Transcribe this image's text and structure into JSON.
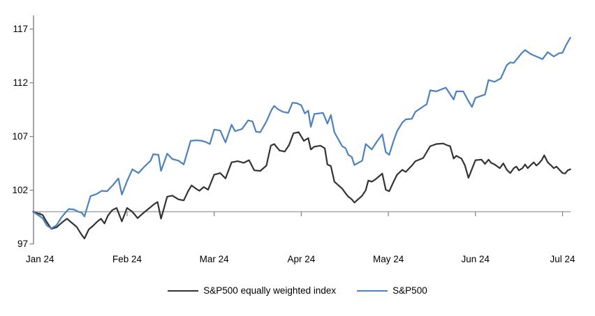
{
  "chart_data": {
    "type": "line",
    "title": "",
    "xlabel": "",
    "ylabel": "",
    "x_unit": "months_since_2024-01-01",
    "x_tick_labels": [
      "Jan 24",
      "Feb 24",
      "Mar 24",
      "Apr 24",
      "May 24",
      "Jun 24",
      "Jul 24"
    ],
    "y_ticks": [
      97,
      102,
      107,
      112,
      117
    ],
    "ylim": [
      97,
      117
    ],
    "baseline_value": 100,
    "grid": "off",
    "legend_position": "bottom",
    "colors": {
      "axis": "#7f7f7f",
      "baseline": "#a6a6a6",
      "text": "#000000",
      "background": "#ffffff"
    },
    "series": [
      {
        "name": "S&P500 equally weighted index",
        "color": "#333333",
        "points": [
          [
            -0.08,
            100.0
          ],
          [
            0.03,
            99.7
          ],
          [
            0.08,
            99.0
          ],
          [
            0.13,
            98.4
          ],
          [
            0.19,
            98.55
          ],
          [
            0.26,
            99.05
          ],
          [
            0.31,
            99.35
          ],
          [
            0.36,
            99.0
          ],
          [
            0.42,
            98.6
          ],
          [
            0.47,
            97.95
          ],
          [
            0.51,
            97.5
          ],
          [
            0.56,
            98.35
          ],
          [
            0.61,
            98.7
          ],
          [
            0.66,
            99.1
          ],
          [
            0.7,
            99.35
          ],
          [
            0.74,
            98.9
          ],
          [
            0.78,
            99.65
          ],
          [
            0.83,
            100.15
          ],
          [
            0.88,
            100.35
          ],
          [
            0.94,
            99.1
          ],
          [
            1.0,
            100.35
          ],
          [
            1.06,
            100.0
          ],
          [
            1.12,
            99.4
          ],
          [
            1.19,
            99.9
          ],
          [
            1.25,
            100.3
          ],
          [
            1.31,
            100.7
          ],
          [
            1.35,
            100.9
          ],
          [
            1.39,
            99.35
          ],
          [
            1.46,
            101.4
          ],
          [
            1.52,
            101.5
          ],
          [
            1.59,
            101.15
          ],
          [
            1.65,
            101.05
          ],
          [
            1.7,
            101.9
          ],
          [
            1.74,
            102.45
          ],
          [
            1.79,
            102.15
          ],
          [
            1.83,
            101.95
          ],
          [
            1.88,
            102.3
          ],
          [
            1.93,
            102.05
          ],
          [
            2.0,
            103.45
          ],
          [
            2.07,
            103.6
          ],
          [
            2.13,
            103.1
          ],
          [
            2.2,
            104.6
          ],
          [
            2.27,
            104.7
          ],
          [
            2.34,
            104.55
          ],
          [
            2.4,
            104.8
          ],
          [
            2.46,
            103.85
          ],
          [
            2.53,
            103.8
          ],
          [
            2.6,
            104.3
          ],
          [
            2.65,
            106.15
          ],
          [
            2.69,
            106.3
          ],
          [
            2.75,
            105.7
          ],
          [
            2.81,
            105.6
          ],
          [
            2.86,
            106.2
          ],
          [
            2.91,
            107.3
          ],
          [
            2.97,
            107.4
          ],
          [
            3.03,
            106.6
          ],
          [
            3.08,
            106.85
          ],
          [
            3.11,
            105.8
          ],
          [
            3.15,
            106.05
          ],
          [
            3.22,
            106.15
          ],
          [
            3.27,
            105.9
          ],
          [
            3.3,
            104.4
          ],
          [
            3.34,
            104.25
          ],
          [
            3.38,
            102.8
          ],
          [
            3.47,
            102.15
          ],
          [
            3.51,
            101.7
          ],
          [
            3.54,
            101.4
          ],
          [
            3.58,
            101.15
          ],
          [
            3.61,
            100.85
          ],
          [
            3.7,
            101.5
          ],
          [
            3.74,
            102.0
          ],
          [
            3.77,
            102.9
          ],
          [
            3.81,
            102.8
          ],
          [
            3.85,
            103.0
          ],
          [
            3.93,
            103.55
          ],
          [
            3.97,
            102.05
          ],
          [
            4.01,
            101.9
          ],
          [
            4.06,
            102.8
          ],
          [
            4.1,
            103.45
          ],
          [
            4.16,
            103.9
          ],
          [
            4.2,
            103.7
          ],
          [
            4.27,
            104.3
          ],
          [
            4.31,
            104.7
          ],
          [
            4.4,
            105.0
          ],
          [
            4.44,
            105.55
          ],
          [
            4.48,
            106.1
          ],
          [
            4.55,
            106.3
          ],
          [
            4.63,
            106.35
          ],
          [
            4.67,
            106.2
          ],
          [
            4.71,
            106.1
          ],
          [
            4.75,
            104.95
          ],
          [
            4.78,
            105.2
          ],
          [
            4.84,
            104.95
          ],
          [
            4.88,
            104.3
          ],
          [
            4.92,
            103.15
          ],
          [
            5.0,
            104.8
          ],
          [
            5.07,
            104.85
          ],
          [
            5.11,
            104.45
          ],
          [
            5.15,
            104.85
          ],
          [
            5.18,
            104.55
          ],
          [
            5.22,
            104.4
          ],
          [
            5.28,
            104.05
          ],
          [
            5.32,
            104.5
          ],
          [
            5.36,
            103.9
          ],
          [
            5.4,
            103.6
          ],
          [
            5.44,
            104.05
          ],
          [
            5.47,
            104.2
          ],
          [
            5.5,
            103.85
          ],
          [
            5.54,
            104.05
          ],
          [
            5.57,
            104.4
          ],
          [
            5.6,
            104.05
          ],
          [
            5.63,
            104.3
          ],
          [
            5.67,
            104.6
          ],
          [
            5.7,
            104.3
          ],
          [
            5.73,
            104.5
          ],
          [
            5.76,
            104.8
          ],
          [
            5.79,
            105.25
          ],
          [
            5.83,
            104.6
          ],
          [
            5.87,
            104.3
          ],
          [
            5.9,
            104.05
          ],
          [
            5.93,
            104.2
          ],
          [
            5.96,
            103.95
          ],
          [
            6.0,
            103.6
          ],
          [
            6.03,
            103.55
          ],
          [
            6.06,
            103.85
          ],
          [
            6.09,
            103.95
          ]
        ]
      },
      {
        "name": "S&P500",
        "color": "#4b81be",
        "points": [
          [
            -0.08,
            100.0
          ],
          [
            0.03,
            99.4
          ],
          [
            0.08,
            98.7
          ],
          [
            0.13,
            98.45
          ],
          [
            0.19,
            98.75
          ],
          [
            0.24,
            99.4
          ],
          [
            0.29,
            99.9
          ],
          [
            0.33,
            100.25
          ],
          [
            0.39,
            100.2
          ],
          [
            0.44,
            100.0
          ],
          [
            0.48,
            99.9
          ],
          [
            0.51,
            99.55
          ],
          [
            0.58,
            101.45
          ],
          [
            0.65,
            101.65
          ],
          [
            0.71,
            101.95
          ],
          [
            0.77,
            101.9
          ],
          [
            0.84,
            102.5
          ],
          [
            0.9,
            103.1
          ],
          [
            0.94,
            101.6
          ],
          [
            1.0,
            102.85
          ],
          [
            1.06,
            103.95
          ],
          [
            1.13,
            103.6
          ],
          [
            1.2,
            104.2
          ],
          [
            1.27,
            104.75
          ],
          [
            1.3,
            105.35
          ],
          [
            1.36,
            105.3
          ],
          [
            1.39,
            103.8
          ],
          [
            1.46,
            105.4
          ],
          [
            1.52,
            104.9
          ],
          [
            1.59,
            104.75
          ],
          [
            1.65,
            104.4
          ],
          [
            1.73,
            106.6
          ],
          [
            1.8,
            106.65
          ],
          [
            1.86,
            106.6
          ],
          [
            1.9,
            106.5
          ],
          [
            1.95,
            106.3
          ],
          [
            2.0,
            107.65
          ],
          [
            2.07,
            107.55
          ],
          [
            2.13,
            106.45
          ],
          [
            2.2,
            108.1
          ],
          [
            2.24,
            107.5
          ],
          [
            2.32,
            107.7
          ],
          [
            2.39,
            108.5
          ],
          [
            2.44,
            108.4
          ],
          [
            2.48,
            107.45
          ],
          [
            2.53,
            107.4
          ],
          [
            2.6,
            108.4
          ],
          [
            2.66,
            109.5
          ],
          [
            2.69,
            109.85
          ],
          [
            2.73,
            109.55
          ],
          [
            2.79,
            109.3
          ],
          [
            2.85,
            109.2
          ],
          [
            2.9,
            110.15
          ],
          [
            2.95,
            110.1
          ],
          [
            3.0,
            109.9
          ],
          [
            3.04,
            109.15
          ],
          [
            3.08,
            109.4
          ],
          [
            3.11,
            107.9
          ],
          [
            3.15,
            109.1
          ],
          [
            3.25,
            109.2
          ],
          [
            3.3,
            108.2
          ],
          [
            3.34,
            109.0
          ],
          [
            3.38,
            107.4
          ],
          [
            3.47,
            106.1
          ],
          [
            3.51,
            105.9
          ],
          [
            3.54,
            105.3
          ],
          [
            3.58,
            105.1
          ],
          [
            3.61,
            104.35
          ],
          [
            3.7,
            104.75
          ],
          [
            3.74,
            106.3
          ],
          [
            3.81,
            105.8
          ],
          [
            3.87,
            106.55
          ],
          [
            3.93,
            107.2
          ],
          [
            3.97,
            105.55
          ],
          [
            4.01,
            105.3
          ],
          [
            4.06,
            106.6
          ],
          [
            4.1,
            107.5
          ],
          [
            4.16,
            108.3
          ],
          [
            4.2,
            108.6
          ],
          [
            4.27,
            108.65
          ],
          [
            4.31,
            109.3
          ],
          [
            4.4,
            109.8
          ],
          [
            4.44,
            110.0
          ],
          [
            4.48,
            111.3
          ],
          [
            4.55,
            111.2
          ],
          [
            4.66,
            111.55
          ],
          [
            4.75,
            110.45
          ],
          [
            4.78,
            111.2
          ],
          [
            4.86,
            111.2
          ],
          [
            4.92,
            110.3
          ],
          [
            4.96,
            109.75
          ],
          [
            5.0,
            110.6
          ],
          [
            5.07,
            110.8
          ],
          [
            5.11,
            110.9
          ],
          [
            5.15,
            112.25
          ],
          [
            5.22,
            112.1
          ],
          [
            5.29,
            112.4
          ],
          [
            5.36,
            113.65
          ],
          [
            5.4,
            113.9
          ],
          [
            5.44,
            113.85
          ],
          [
            5.53,
            114.75
          ],
          [
            5.57,
            115.05
          ],
          [
            5.63,
            114.7
          ],
          [
            5.67,
            114.55
          ],
          [
            5.77,
            114.2
          ],
          [
            5.83,
            114.85
          ],
          [
            5.9,
            114.45
          ],
          [
            5.96,
            114.75
          ],
          [
            6.0,
            114.8
          ],
          [
            6.04,
            115.5
          ],
          [
            6.09,
            116.2
          ]
        ]
      }
    ]
  }
}
